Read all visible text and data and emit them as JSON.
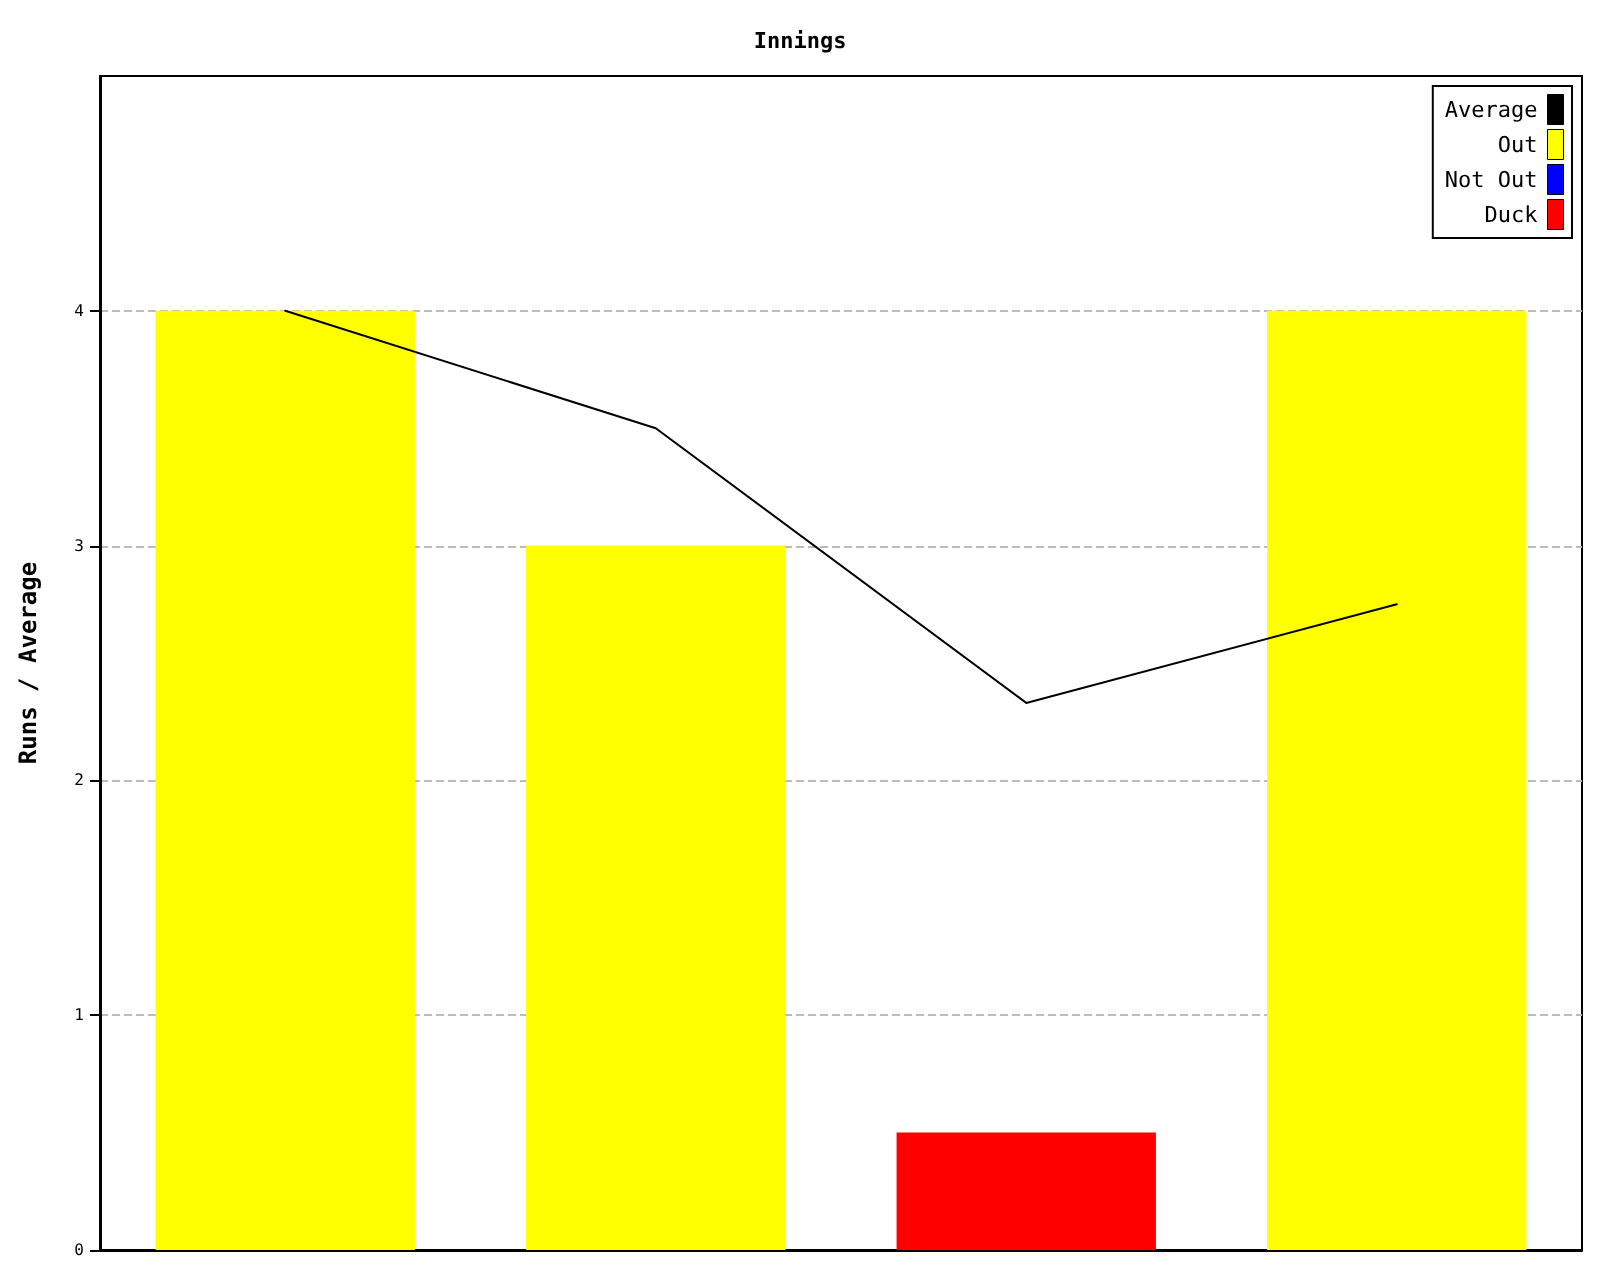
{
  "chart_data": {
    "type": "bar",
    "title": "Innings",
    "ylabel": "Runs / Average",
    "categories": [
      null,
      null,
      null,
      null
    ],
    "series": [
      {
        "name": "Average",
        "type": "line",
        "color": "#000000",
        "values": [
          4,
          3.5,
          2.33,
          2.75
        ]
      },
      {
        "name": "Out",
        "color": "#ffff00",
        "values": [
          4,
          3,
          null,
          4
        ]
      },
      {
        "name": "Not Out",
        "color": "#0000ff",
        "values": [
          null,
          null,
          null,
          null
        ]
      },
      {
        "name": "Duck",
        "color": "#ff0000",
        "values": [
          null,
          null,
          0.5,
          null
        ]
      }
    ],
    "stacked": true,
    "ylim": [
      0,
      5
    ],
    "yticks": [
      0,
      1,
      2,
      3,
      4
    ],
    "grid": "y",
    "legend": "top right",
    "marker": "none"
  }
}
